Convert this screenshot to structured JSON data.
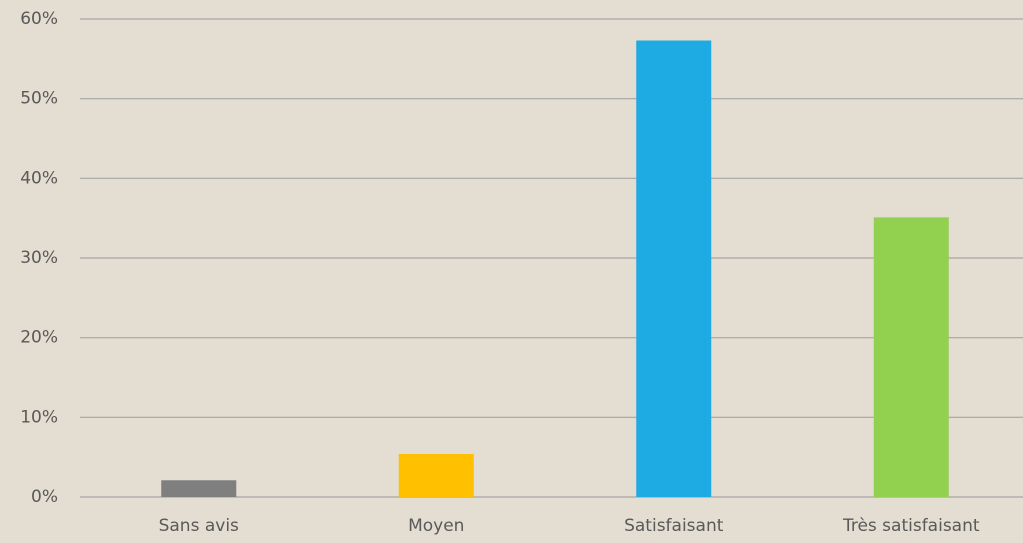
{
  "chart_data": {
    "type": "bar",
    "categories": [
      "Sans avis",
      "Moyen",
      "Satisfaisant",
      "Très satisfaisant"
    ],
    "values": [
      2.1,
      5.4,
      57.3,
      35.1
    ],
    "colors": [
      "#7f7f7f",
      "#ffc000",
      "#1eaae2",
      "#92d050"
    ],
    "ylim": [
      0,
      60
    ],
    "yticks": [
      {
        "value": 0,
        "label": "0%"
      },
      {
        "value": 10,
        "label": "10%"
      },
      {
        "value": 20,
        "label": "20%"
      },
      {
        "value": 30,
        "label": "30%"
      },
      {
        "value": 40,
        "label": "40%"
      },
      {
        "value": 50,
        "label": "50%"
      },
      {
        "value": 60,
        "label": "60%"
      }
    ],
    "grid": true
  }
}
